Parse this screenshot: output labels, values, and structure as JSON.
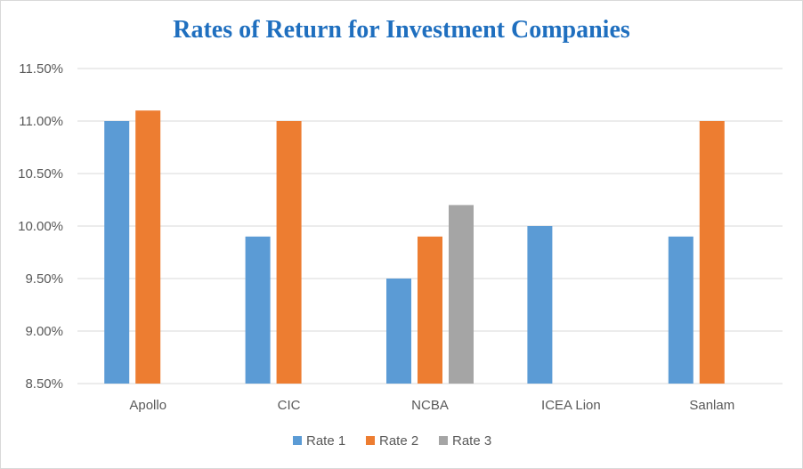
{
  "chart_data": {
    "type": "bar",
    "title": "Rates of Return for Investment Companies",
    "xlabel": "",
    "ylabel": "",
    "categories": [
      "Apollo",
      "CIC",
      "NCBA",
      "ICEA Lion",
      "Sanlam"
    ],
    "series": [
      {
        "name": "Rate 1",
        "color": "#5b9bd5",
        "values": [
          11.0,
          9.9,
          9.5,
          10.0,
          9.9
        ]
      },
      {
        "name": "Rate 2",
        "color": "#ed7d31",
        "values": [
          11.1,
          11.0,
          9.9,
          null,
          11.0
        ]
      },
      {
        "name": "Rate 3",
        "color": "#a5a5a5",
        "values": [
          null,
          null,
          10.2,
          null,
          null
        ]
      }
    ],
    "ylim": [
      8.5,
      11.5
    ],
    "yticks": [
      8.5,
      9.0,
      9.5,
      10.0,
      10.5,
      11.0,
      11.5
    ],
    "ytick_labels": [
      "8.50%",
      "9.00%",
      "9.50%",
      "10.00%",
      "10.50%",
      "11.00%",
      "11.50%"
    ],
    "grid": true,
    "legend_position": "bottom"
  }
}
